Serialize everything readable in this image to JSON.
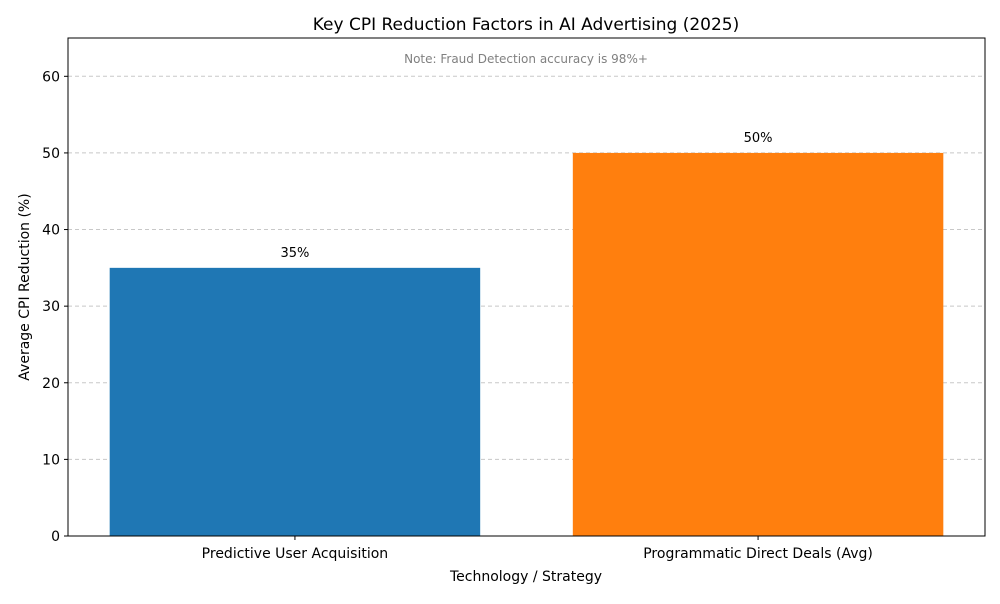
{
  "chart_data": {
    "type": "bar",
    "title": "Key CPI Reduction Factors in AI Advertising (2025)",
    "xlabel": "Technology / Strategy",
    "ylabel": "Average CPI Reduction (%)",
    "categories": [
      "Predictive User Acquisition",
      "Programmatic Direct Deals (Avg)"
    ],
    "values": [
      35,
      50
    ],
    "data_labels": [
      "35%",
      "50%"
    ],
    "colors": [
      "#1f77b4",
      "#ff7f0e"
    ],
    "ylim": [
      0,
      65
    ],
    "yticks": [
      0,
      10,
      20,
      30,
      40,
      50,
      60
    ],
    "grid": "y-dashed",
    "annotation": "Note: Fraud Detection accuracy is 98%+"
  }
}
